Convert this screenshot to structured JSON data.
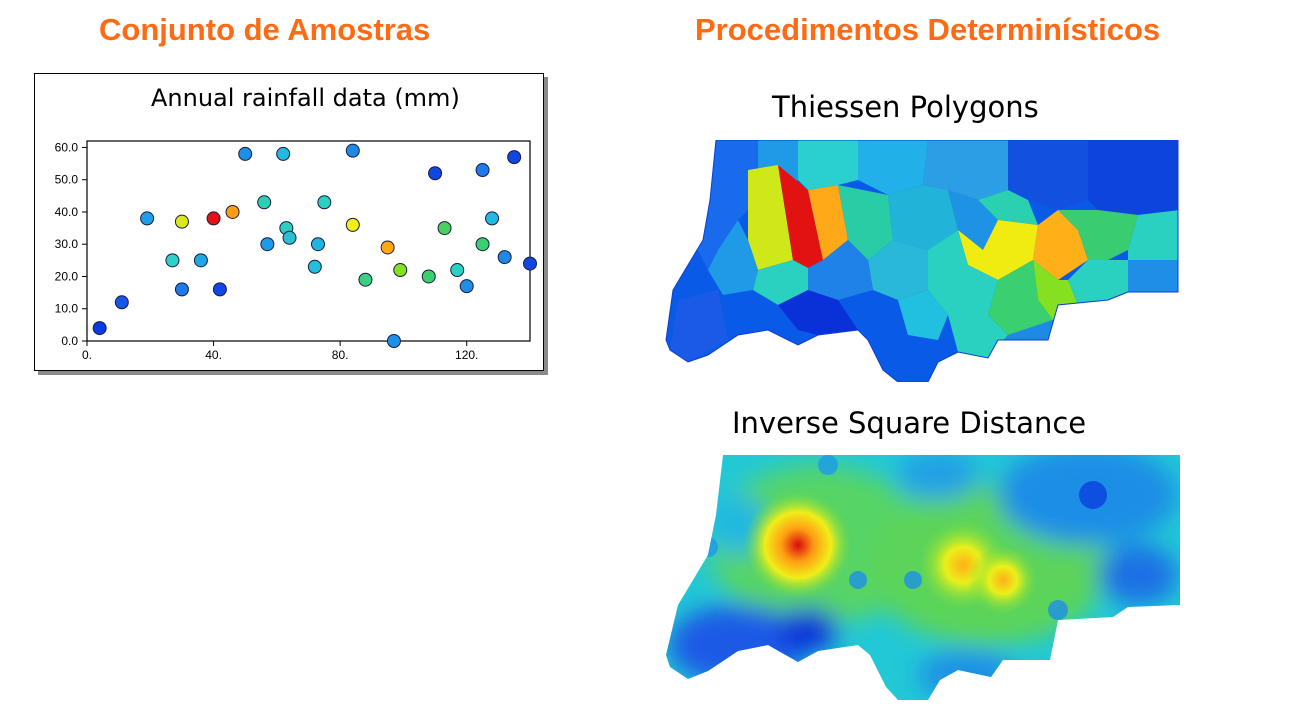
{
  "headings": {
    "left": "Conjunto de Amostras",
    "right": "Procedimentos Determinísticos"
  },
  "colors": {
    "heading": "#ff6a13"
  },
  "maps": {
    "thiessen_title": "Thiessen Polygons",
    "isd_title": "Inverse Square Distance"
  },
  "chart_data": {
    "type": "scatter",
    "title": "Annual rainfall data (mm)",
    "xlim": [
      0,
      140
    ],
    "ylim": [
      0,
      62
    ],
    "xticks": [
      0,
      40,
      80,
      120
    ],
    "xtick_labels": [
      "0.",
      "40.",
      "80.",
      "120."
    ],
    "yticks": [
      0,
      10,
      20,
      30,
      40,
      50,
      60
    ],
    "ytick_labels": [
      "0.0",
      "10.0",
      "20.0",
      "30.0",
      "40.0",
      "50.0",
      "60.0"
    ],
    "grid": false,
    "color_encoding": "rainfall value (blue low → red high)",
    "points": [
      {
        "x": 4,
        "y": 4,
        "color": "#0a3ae0"
      },
      {
        "x": 11,
        "y": 12,
        "color": "#1556e8"
      },
      {
        "x": 19,
        "y": 38,
        "color": "#1e9ee6"
      },
      {
        "x": 27,
        "y": 25,
        "color": "#2fd0c8"
      },
      {
        "x": 30,
        "y": 16,
        "color": "#1e7ae8"
      },
      {
        "x": 30,
        "y": 37,
        "color": "#d8e81a"
      },
      {
        "x": 36,
        "y": 25,
        "color": "#1ea8e6"
      },
      {
        "x": 40,
        "y": 38,
        "color": "#e01414"
      },
      {
        "x": 42,
        "y": 16,
        "color": "#1246e6"
      },
      {
        "x": 46,
        "y": 40,
        "color": "#ff9e14"
      },
      {
        "x": 50,
        "y": 58,
        "color": "#1e8ee6"
      },
      {
        "x": 56,
        "y": 43,
        "color": "#2ad0b0"
      },
      {
        "x": 57,
        "y": 30,
        "color": "#1e9ae6"
      },
      {
        "x": 62,
        "y": 58,
        "color": "#22b8e0"
      },
      {
        "x": 63,
        "y": 35,
        "color": "#2ad0c0"
      },
      {
        "x": 64,
        "y": 32,
        "color": "#2ac0d0"
      },
      {
        "x": 72,
        "y": 23,
        "color": "#22c0d8"
      },
      {
        "x": 73,
        "y": 30,
        "color": "#22b4e0"
      },
      {
        "x": 75,
        "y": 43,
        "color": "#2ad0c0"
      },
      {
        "x": 84,
        "y": 59,
        "color": "#1e8ae6"
      },
      {
        "x": 84,
        "y": 36,
        "color": "#f0f014"
      },
      {
        "x": 88,
        "y": 19,
        "color": "#3ad080"
      },
      {
        "x": 95,
        "y": 29,
        "color": "#ffa814"
      },
      {
        "x": 97,
        "y": 0,
        "color": "#1e90e6"
      },
      {
        "x": 99,
        "y": 22,
        "color": "#84e020"
      },
      {
        "x": 108,
        "y": 20,
        "color": "#3ad070"
      },
      {
        "x": 110,
        "y": 52,
        "color": "#1246e0"
      },
      {
        "x": 113,
        "y": 35,
        "color": "#4ad060"
      },
      {
        "x": 117,
        "y": 22,
        "color": "#2ad0c0"
      },
      {
        "x": 120,
        "y": 17,
        "color": "#1e8ee6"
      },
      {
        "x": 125,
        "y": 53,
        "color": "#1e7ae8"
      },
      {
        "x": 125,
        "y": 30,
        "color": "#3ad070"
      },
      {
        "x": 128,
        "y": 38,
        "color": "#22b8e0"
      },
      {
        "x": 132,
        "y": 26,
        "color": "#1e8ae6"
      },
      {
        "x": 135,
        "y": 57,
        "color": "#1246e0"
      },
      {
        "x": 140,
        "y": 24,
        "color": "#1246e0"
      }
    ]
  }
}
